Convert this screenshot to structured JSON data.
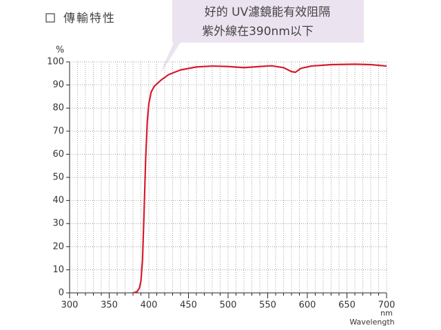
{
  "chart_data": {
    "type": "line",
    "title": "傳輸特性",
    "annotation": [
      "好的 UV濾鏡能有效阻隔",
      "紫外線在390nm以下"
    ],
    "y_label": "%",
    "x_unit": "nm",
    "x_label": "Wavelength",
    "color": "#d9182b",
    "x": [
      380,
      385,
      388,
      390,
      392,
      394,
      396,
      398,
      400,
      403,
      407,
      415,
      425,
      440,
      460,
      480,
      500,
      520,
      540,
      555,
      570,
      580,
      585,
      592,
      605,
      630,
      660,
      680,
      700
    ],
    "values": [
      0,
      0.5,
      2,
      5,
      14,
      35,
      58,
      74,
      82,
      87,
      89.5,
      92,
      94.5,
      96.5,
      97.8,
      98.2,
      98,
      97.5,
      98,
      98.3,
      97.5,
      95.8,
      95.5,
      97.2,
      98.2,
      98.8,
      99,
      98.8,
      98.2
    ],
    "xlim": [
      300,
      700
    ],
    "ylim": [
      0,
      100
    ],
    "xticks": [
      300,
      350,
      400,
      450,
      500,
      550,
      600,
      650,
      700
    ],
    "x_minor_ticks": [
      310,
      320,
      330,
      340,
      360,
      370,
      380,
      390,
      410,
      420,
      430,
      440,
      460,
      470,
      480,
      490,
      510,
      520,
      530,
      540,
      560,
      570,
      580,
      590,
      610,
      620,
      630,
      640,
      660,
      670,
      680,
      690
    ],
    "yticks": [
      0,
      10,
      20,
      30,
      40,
      50,
      60,
      70,
      80,
      90,
      100
    ],
    "grid": true
  }
}
